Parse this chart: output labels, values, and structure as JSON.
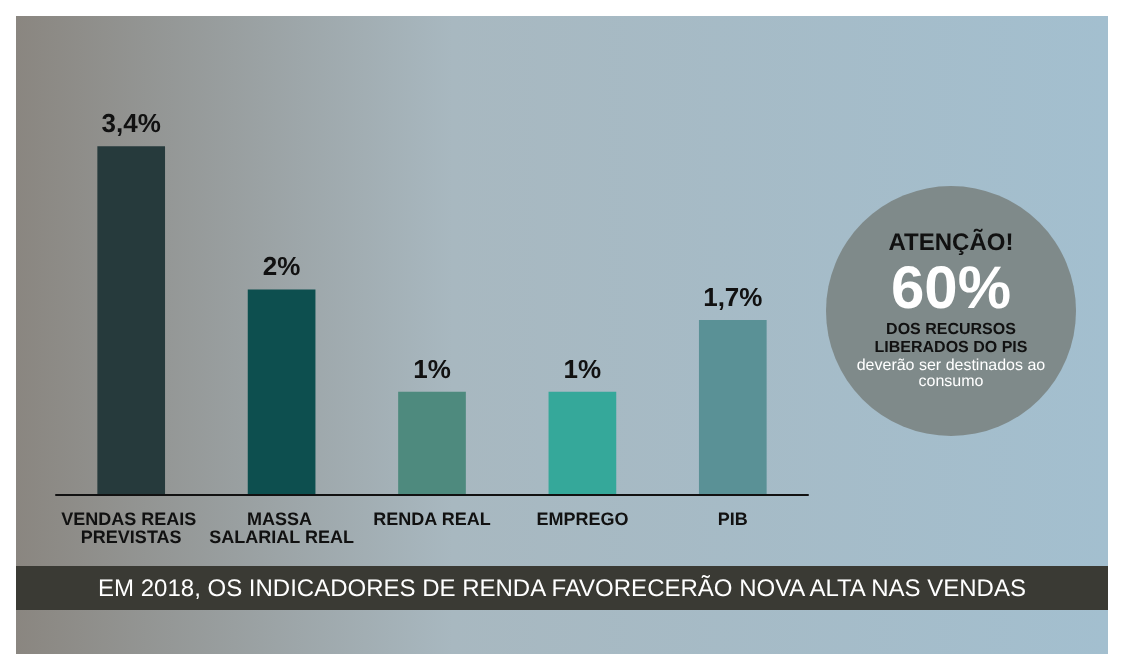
{
  "chart_data": {
    "type": "bar",
    "title": "EM 2018, OS INDICADORES DE RENDA FAVORECERÃO NOVA ALTA NAS VENDAS",
    "categories": [
      "VENDAS REAIS PREVISTAS",
      "MASSA SALARIAL REAL",
      "RENDA REAL",
      "EMPREGO",
      "PIB"
    ],
    "values": [
      3.4,
      2,
      1,
      1,
      1.7
    ],
    "value_labels": [
      "3,4%",
      "2%",
      "1%",
      "1%",
      "1,7%"
    ],
    "colors": [
      "#263a3c",
      "#0d4f4f",
      "#4e8a7e",
      "#35a89a",
      "#5a9196"
    ],
    "annotations": [
      "ATENÇÃO!",
      "60%",
      "DOS RECURSOS LIBERADOS DO PIS",
      "deverão ser destinados ao consumo"
    ],
    "grid": false
  }
}
